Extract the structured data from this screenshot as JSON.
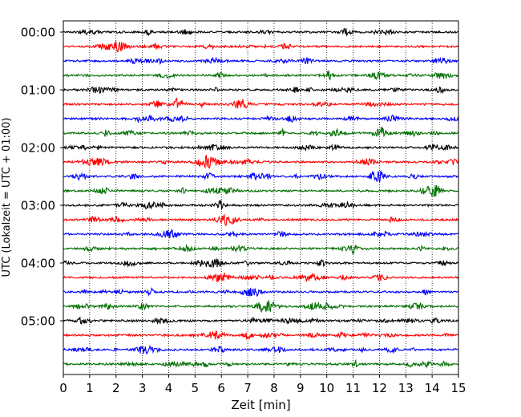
{
  "chart_data": {
    "type": "line",
    "title": "",
    "xlabel": "Zeit  [min]",
    "ylabel": "UTC (Lokalzeit = UTC + 01:00)",
    "xlim": [
      0,
      15
    ],
    "x_ticks": [
      0,
      1,
      2,
      3,
      4,
      5,
      6,
      7,
      8,
      9,
      10,
      11,
      12,
      13,
      14,
      15
    ],
    "x_tick_labels": [
      "0",
      "1",
      "2",
      "3",
      "4",
      "5",
      "6",
      "7",
      "8",
      "9",
      "10",
      "11",
      "12",
      "13",
      "14",
      "15"
    ],
    "y_tick_labels": [
      "00:00",
      "01:00",
      "02:00",
      "03:00",
      "04:00",
      "05:00"
    ],
    "y_tick_rows": [
      0,
      4,
      8,
      12,
      16,
      20
    ],
    "row_count": 24,
    "minutes_per_row": 15,
    "trace_colors": [
      "#000000",
      "#ff0000",
      "#0000ff",
      "#007000"
    ],
    "grid_x": true,
    "grid_style": "dotted",
    "series": [
      {
        "start": "00:00",
        "color": "#000000"
      },
      {
        "start": "00:15",
        "color": "#ff0000"
      },
      {
        "start": "00:30",
        "color": "#0000ff"
      },
      {
        "start": "00:45",
        "color": "#007000"
      },
      {
        "start": "01:00",
        "color": "#000000"
      },
      {
        "start": "01:15",
        "color": "#ff0000"
      },
      {
        "start": "01:30",
        "color": "#0000ff"
      },
      {
        "start": "01:45",
        "color": "#007000"
      },
      {
        "start": "02:00",
        "color": "#000000"
      },
      {
        "start": "02:15",
        "color": "#ff0000"
      },
      {
        "start": "02:30",
        "color": "#0000ff"
      },
      {
        "start": "02:45",
        "color": "#007000"
      },
      {
        "start": "03:00",
        "color": "#000000"
      },
      {
        "start": "03:15",
        "color": "#ff0000"
      },
      {
        "start": "03:30",
        "color": "#0000ff"
      },
      {
        "start": "03:45",
        "color": "#007000"
      },
      {
        "start": "04:00",
        "color": "#000000"
      },
      {
        "start": "04:15",
        "color": "#ff0000"
      },
      {
        "start": "04:30",
        "color": "#0000ff"
      },
      {
        "start": "04:45",
        "color": "#007000"
      },
      {
        "start": "05:00",
        "color": "#000000"
      },
      {
        "start": "05:15",
        "color": "#ff0000"
      },
      {
        "start": "05:30",
        "color": "#0000ff"
      },
      {
        "start": "05:45",
        "color": "#007000"
      }
    ]
  }
}
